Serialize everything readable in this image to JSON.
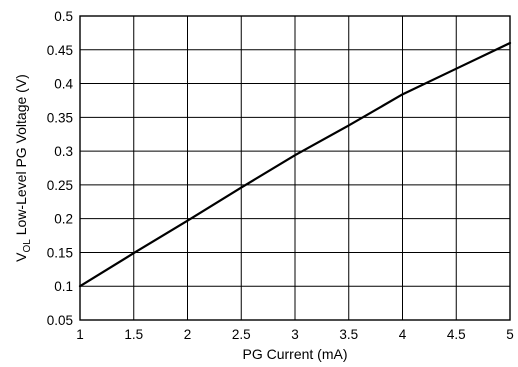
{
  "chart_data": {
    "type": "line",
    "xlabel": "PG Current (mA)",
    "ylabel": {
      "prefix": "V",
      "subscript": "OL",
      "rest": " Low-Level PG Voltage (V)"
    },
    "xlim": [
      1,
      5
    ],
    "ylim": [
      0.05,
      0.5
    ],
    "x_ticks": [
      "1",
      "1.5",
      "2",
      "2.5",
      "3",
      "3.5",
      "4",
      "4.5",
      "5"
    ],
    "y_ticks": [
      "0.05",
      "0.1",
      "0.15",
      "0.2",
      "0.25",
      "0.3",
      "0.35",
      "0.4",
      "0.45",
      "0.5"
    ],
    "grid": true,
    "series": [
      {
        "x": [
          1,
          1.5,
          2,
          2.5,
          3,
          3.5,
          4,
          4.5,
          5
        ],
        "y": [
          0.1,
          0.149,
          0.197,
          0.246,
          0.294,
          0.338,
          0.384,
          0.422,
          0.46
        ]
      }
    ],
    "line_color": "#000000"
  }
}
